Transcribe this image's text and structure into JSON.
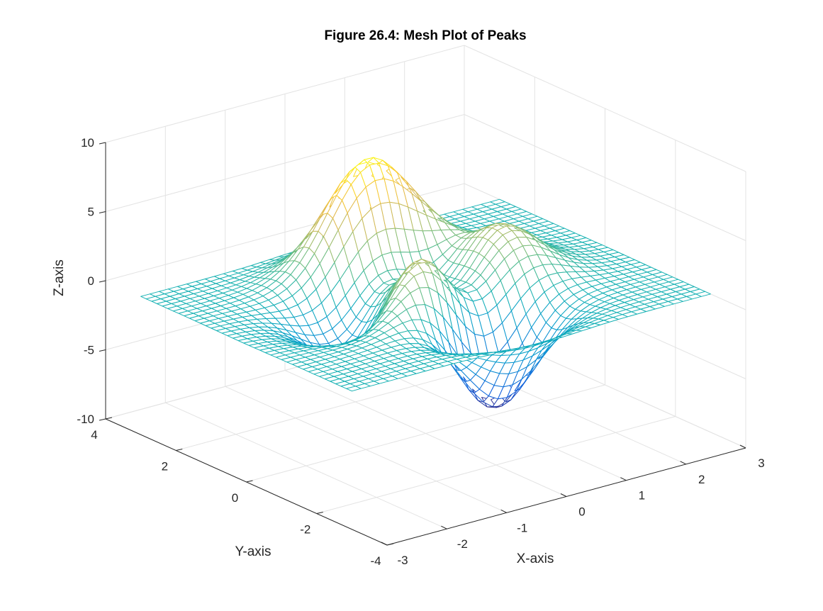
{
  "chart_data": {
    "type": "surface",
    "style": "mesh",
    "function": "peaks",
    "title": "Figure 26.4: Mesh Plot of Peaks",
    "xlabel": "X-axis",
    "ylabel": "Y-axis",
    "zlabel": "Z-axis",
    "xlim": [
      -3,
      3
    ],
    "ylim": [
      -4,
      4
    ],
    "zlim": [
      -10,
      10
    ],
    "xticks": [
      "-3",
      "-2",
      "-1",
      "0",
      "1",
      "2",
      "3"
    ],
    "yticks": [
      "-4",
      "-2",
      "0",
      "2",
      "4"
    ],
    "zticks": [
      "-10",
      "-5",
      "0",
      "5",
      "10"
    ],
    "x_range": [
      -3,
      3
    ],
    "y_range": [
      -3,
      3
    ],
    "grid_points": 40,
    "z_min": -6.55,
    "z_max": 8.1,
    "colormap": "parula",
    "grid": true
  }
}
